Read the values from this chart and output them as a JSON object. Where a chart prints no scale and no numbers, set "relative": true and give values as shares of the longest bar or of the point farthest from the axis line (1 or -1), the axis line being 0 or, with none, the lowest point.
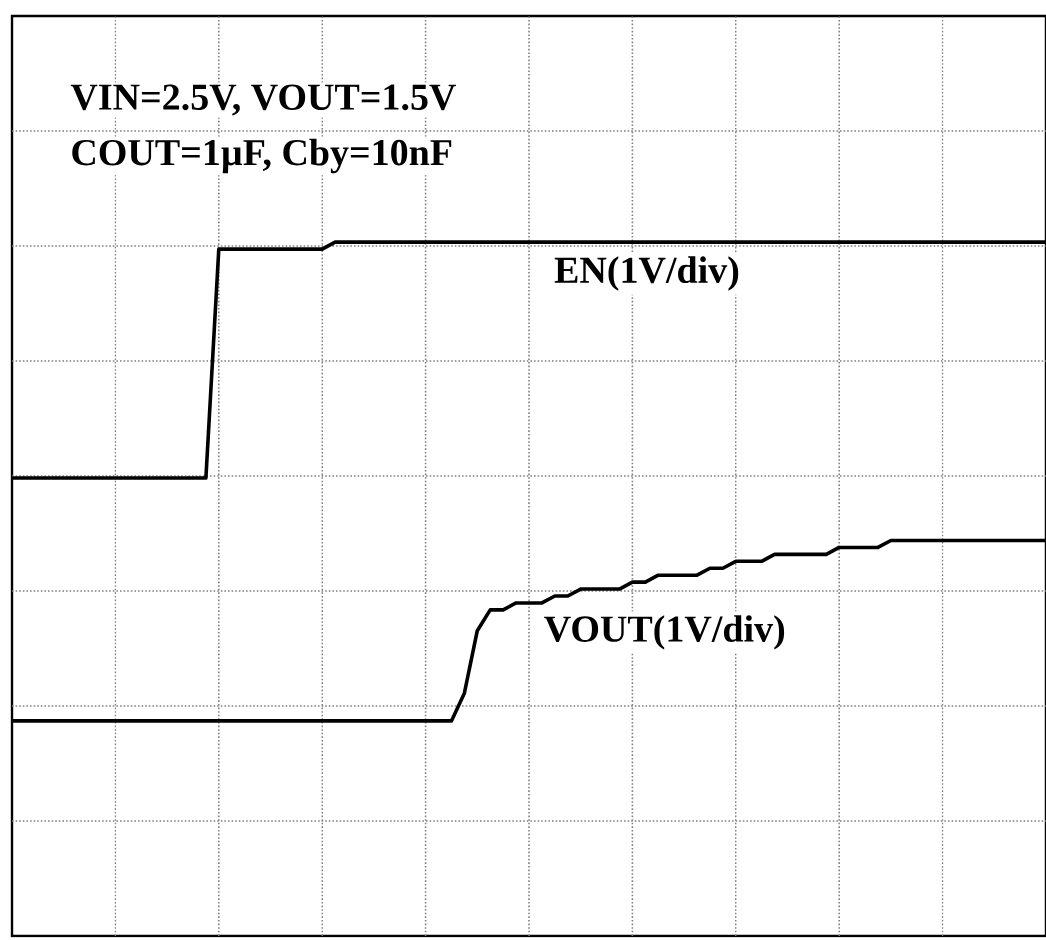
{
  "chart_data": {
    "type": "line",
    "relative": true,
    "grid": true,
    "legend": false,
    "marker": "none",
    "line_style": "solid",
    "annotations": [
      "VIN=2.5V, VOUT=1.5V",
      "COUT=1µF, Cby=10nF"
    ],
    "categories": [
      null,
      null,
      null,
      null,
      null,
      null,
      null,
      null,
      null,
      null,
      null,
      null,
      null,
      null,
      null,
      null,
      null,
      null,
      null,
      null,
      null,
      null,
      null,
      null,
      null,
      null,
      null,
      null,
      null,
      null,
      null,
      null,
      null,
      null,
      null,
      null,
      null,
      null,
      null,
      null,
      null,
      null,
      null,
      null,
      null,
      null,
      null,
      null,
      null,
      null,
      null,
      null,
      null,
      null,
      null,
      null,
      null,
      null,
      null,
      null,
      null,
      null,
      null,
      null,
      null,
      null,
      null,
      null,
      null,
      null,
      null,
      null,
      null,
      null,
      null,
      null,
      null,
      null,
      null,
      null,
      null
    ],
    "series": [
      {
        "name": "EN(1V/div)",
        "color": "#000000",
        "values": [
          0.66,
          0.66,
          0.66,
          0.66,
          0.66,
          0.66,
          0.66,
          0.66,
          0.66,
          0.66,
          0.66,
          0.66,
          0.66,
          0.66,
          0.66,
          0.66,
          0.99,
          0.99,
          0.99,
          0.99,
          0.99,
          0.99,
          0.99,
          0.99,
          0.99,
          1.0,
          1.0,
          1.0,
          1.0,
          1.0,
          1.0,
          1.0,
          1.0,
          1.0,
          1.0,
          1.0,
          1.0,
          1.0,
          1.0,
          1.0,
          1.0,
          1.0,
          1.0,
          1.0,
          1.0,
          1.0,
          1.0,
          1.0,
          1.0,
          1.0,
          1.0,
          1.0,
          1.0,
          1.0,
          1.0,
          1.0,
          1.0,
          1.0,
          1.0,
          1.0,
          1.0,
          1.0,
          1.0,
          1.0,
          1.0,
          1.0,
          1.0,
          1.0,
          1.0,
          1.0,
          1.0,
          1.0,
          1.0,
          1.0,
          1.0,
          1.0,
          1.0,
          1.0,
          1.0,
          1.0,
          1.0
        ]
      },
      {
        "name": "VOUT(1V/div)",
        "color": "#000000",
        "values": [
          0.31,
          0.31,
          0.31,
          0.31,
          0.31,
          0.31,
          0.31,
          0.31,
          0.31,
          0.31,
          0.31,
          0.31,
          0.31,
          0.31,
          0.31,
          0.31,
          0.31,
          0.31,
          0.31,
          0.31,
          0.31,
          0.31,
          0.31,
          0.31,
          0.31,
          0.31,
          0.31,
          0.31,
          0.31,
          0.31,
          0.31,
          0.31,
          0.31,
          0.31,
          0.31,
          0.35,
          0.44,
          0.47,
          0.47,
          0.48,
          0.48,
          0.48,
          0.49,
          0.49,
          0.5,
          0.5,
          0.5,
          0.5,
          0.51,
          0.51,
          0.52,
          0.52,
          0.52,
          0.52,
          0.53,
          0.53,
          0.54,
          0.54,
          0.54,
          0.55,
          0.55,
          0.55,
          0.55,
          0.55,
          0.56,
          0.56,
          0.56,
          0.56,
          0.57,
          0.57,
          0.57,
          0.57,
          0.57,
          0.57,
          0.57,
          0.57,
          0.57,
          0.57,
          0.57,
          0.57,
          0.57
        ]
      }
    ]
  }
}
